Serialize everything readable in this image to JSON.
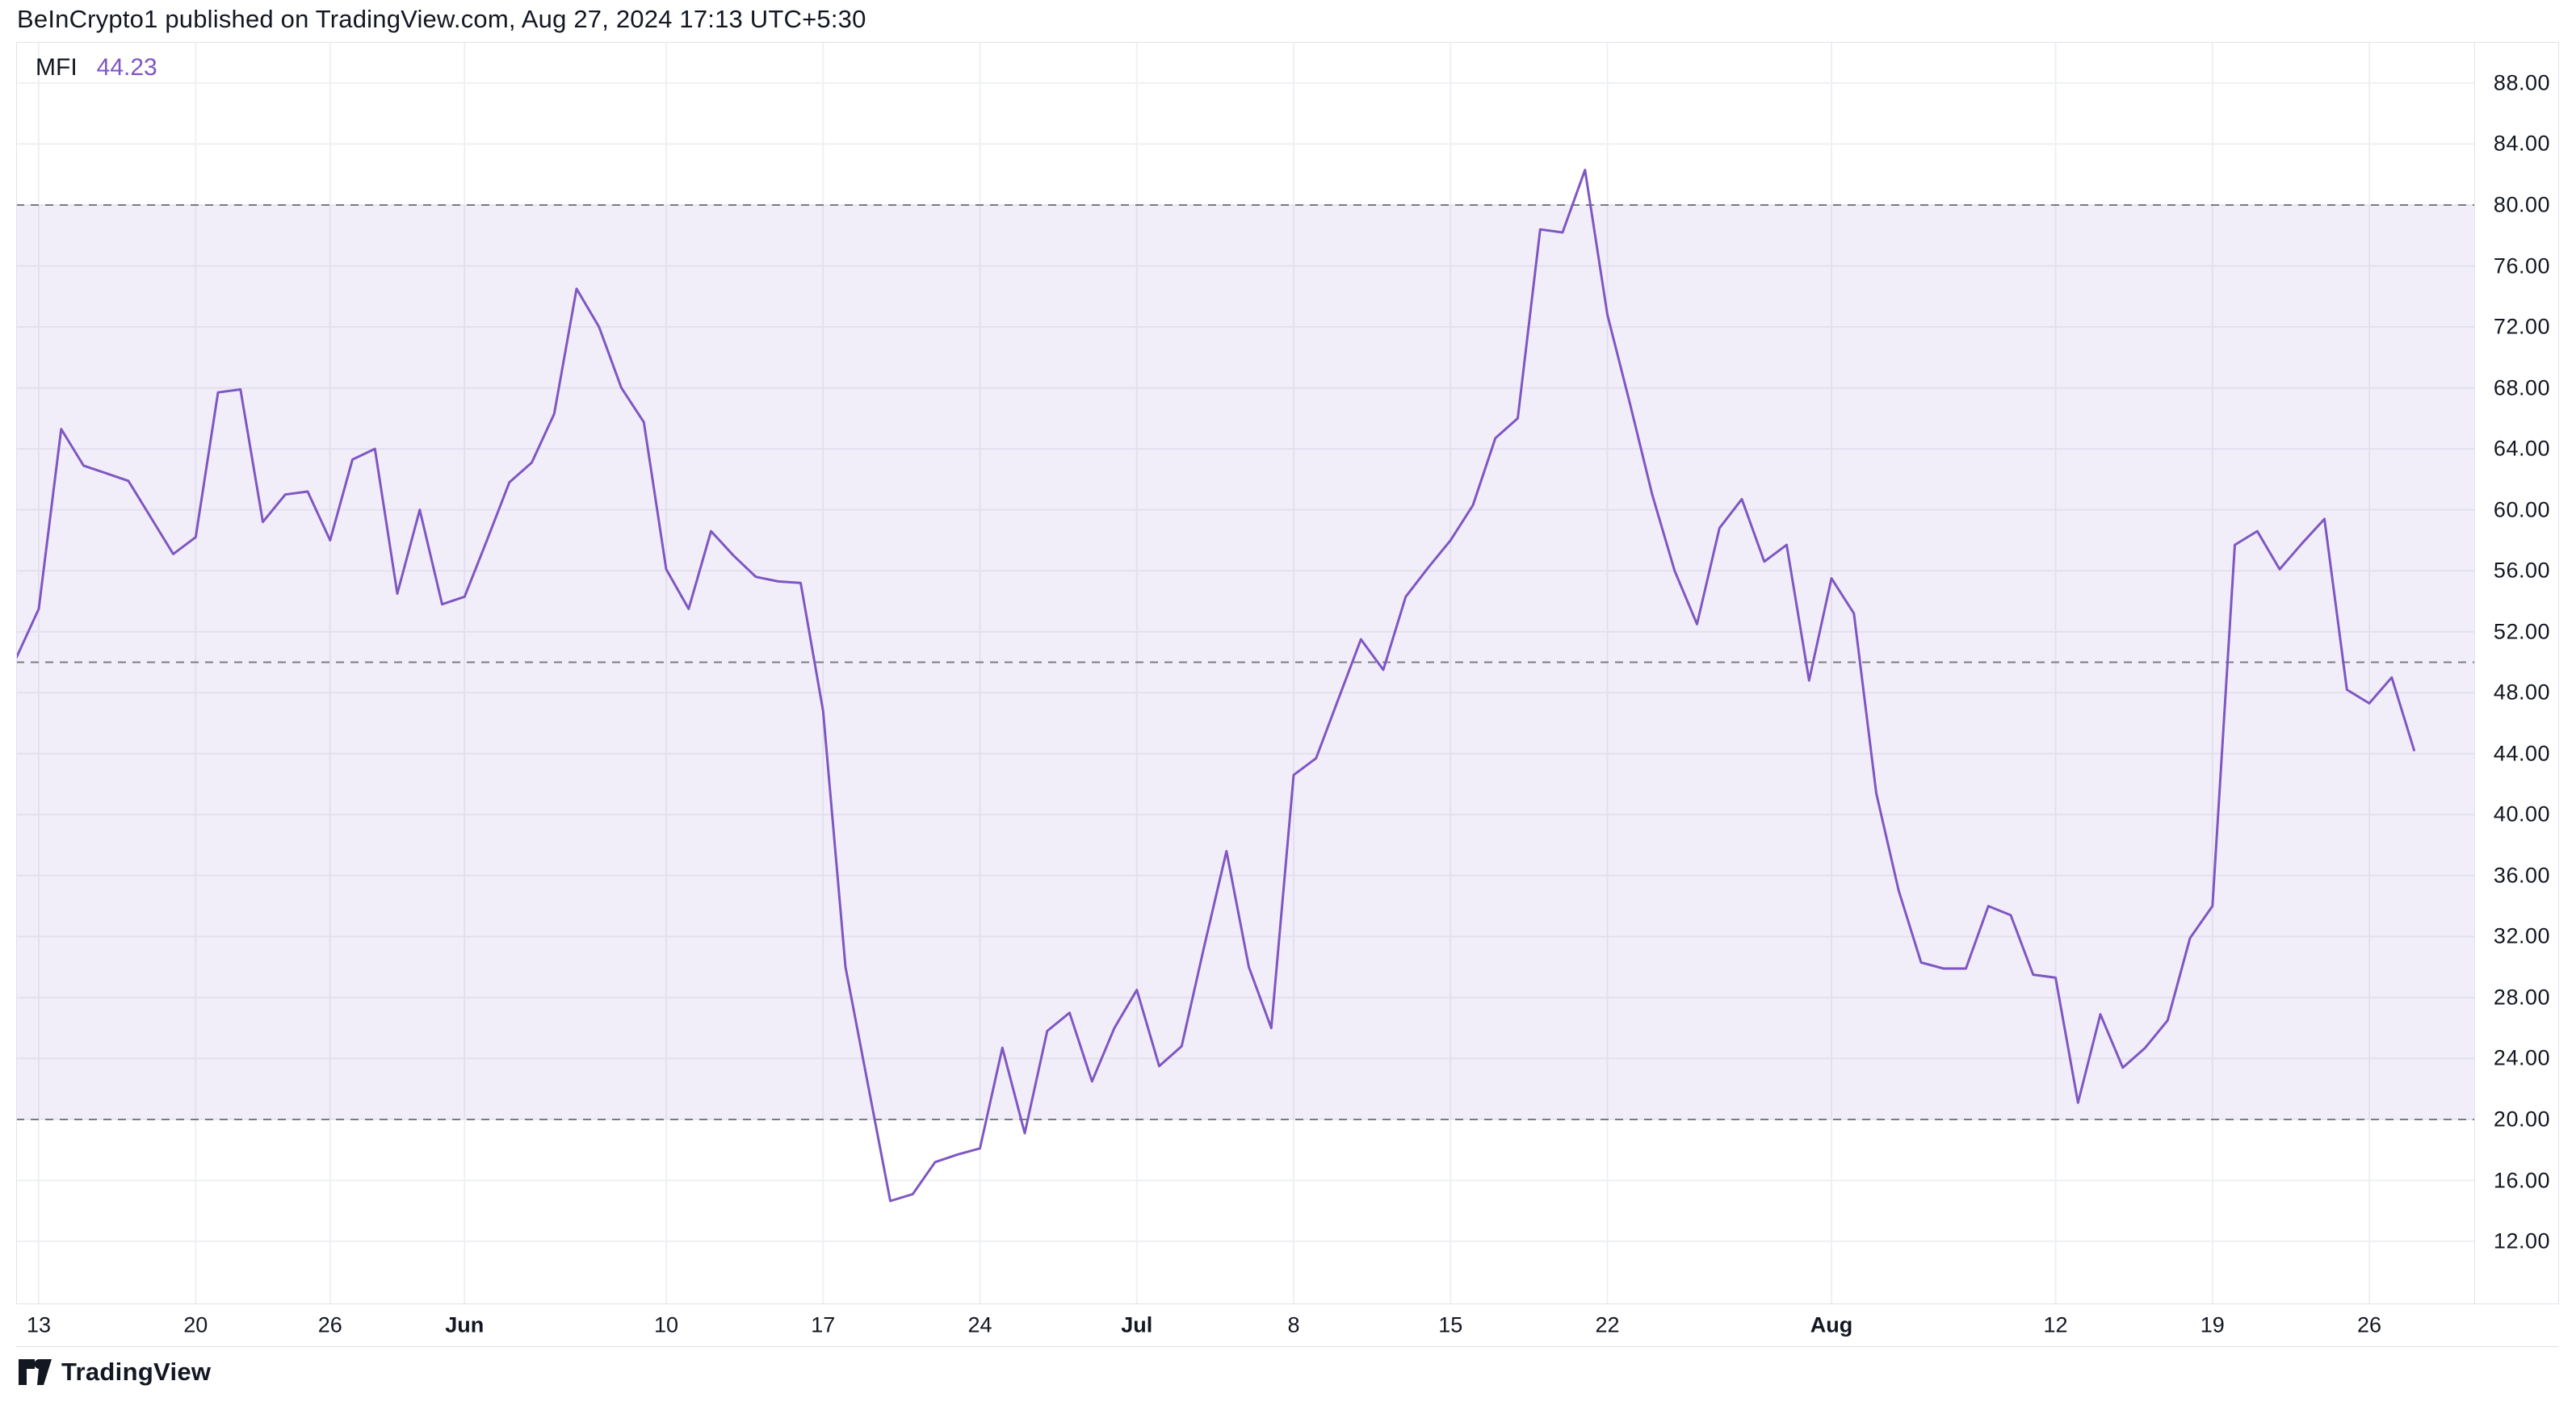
{
  "header": {
    "attribution": "BeInCrypto1 published on TradingView.com, Aug 27, 2024 17:13 UTC+5:30"
  },
  "legend": {
    "indicator": "MFI",
    "last_value_text": "44.23"
  },
  "footer": {
    "brand": "TradingView",
    "logo_icon": "tradingview-mark"
  },
  "colors": {
    "background": "#ffffff",
    "text": "#131722",
    "line": "#7E57C2",
    "last_value": "#7E57C2",
    "band_fill": "rgba(126,87,194,0.10)",
    "dashed_line": "#787b86",
    "gridline": "#eef0f3",
    "border": "#e0e3eb"
  },
  "chart_data": {
    "type": "line",
    "title": "MFI",
    "x_start_date": "2024-05-11",
    "x_frequency": "daily",
    "ylabel": "",
    "ylim": [
      7.9,
      90.7
    ],
    "grid": true,
    "y_ticks": [
      88,
      84,
      80,
      76,
      72,
      68,
      64,
      60,
      56,
      52,
      48,
      44,
      40,
      36,
      32,
      28,
      24,
      20,
      16,
      12
    ],
    "y_tick_decimals": 2,
    "reference_lines": {
      "overbought": 80,
      "middle": 50,
      "oversold": 20
    },
    "x_ticks": [
      {
        "label": "13",
        "day": 2,
        "month": false
      },
      {
        "label": "20",
        "day": 9,
        "month": false
      },
      {
        "label": "26",
        "day": 15,
        "month": false
      },
      {
        "label": "Jun",
        "day": 21,
        "month": true
      },
      {
        "label": "10",
        "day": 30,
        "month": false
      },
      {
        "label": "17",
        "day": 37,
        "month": false
      },
      {
        "label": "24",
        "day": 44,
        "month": false
      },
      {
        "label": "Jul",
        "day": 51,
        "month": true
      },
      {
        "label": "8",
        "day": 58,
        "month": false
      },
      {
        "label": "15",
        "day": 65,
        "month": false
      },
      {
        "label": "22",
        "day": 72,
        "month": false
      },
      {
        "label": "Aug",
        "day": 82,
        "month": true
      },
      {
        "label": "12",
        "day": 92,
        "month": false
      },
      {
        "label": "19",
        "day": 99,
        "month": false
      },
      {
        "label": "26",
        "day": 106,
        "month": false
      }
    ],
    "series": [
      {
        "name": "MFI",
        "color": "#7E57C2",
        "values": [
          50.6,
          50.3,
          53.5,
          65.3,
          62.9,
          62.4,
          61.9,
          59.5,
          57.1,
          58.2,
          67.7,
          67.9,
          59.2,
          61.0,
          61.2,
          58.0,
          63.3,
          64.0,
          54.5,
          60.0,
          53.8,
          54.3,
          58.0,
          61.8,
          63.1,
          66.3,
          74.5,
          72.0,
          68.0,
          65.75,
          56.1,
          53.5,
          58.6,
          57.0,
          55.6,
          55.3,
          55.2,
          46.8,
          30.0,
          22.3,
          14.65,
          15.1,
          17.2,
          17.7,
          18.1,
          24.7,
          19.1,
          25.8,
          27.0,
          22.5,
          26.0,
          28.5,
          23.5,
          24.8,
          31.3,
          37.6,
          30.0,
          26.0,
          42.6,
          43.7,
          47.6,
          51.5,
          49.5,
          54.3,
          56.2,
          58.0,
          60.3,
          64.7,
          66.0,
          78.4,
          78.2,
          82.3,
          72.8,
          67.0,
          61.0,
          56.0,
          52.5,
          58.8,
          60.7,
          56.6,
          57.7,
          48.8,
          55.5,
          53.2,
          41.4,
          35.0,
          30.3,
          29.9,
          29.9,
          34.0,
          33.4,
          29.5,
          29.3,
          21.1,
          26.9,
          23.4,
          24.7,
          26.5,
          31.9,
          34.0,
          57.7,
          58.6,
          56.1,
          57.8,
          59.4,
          48.2,
          47.3,
          49.0,
          44.23
        ]
      }
    ],
    "last_value": 44.23
  }
}
